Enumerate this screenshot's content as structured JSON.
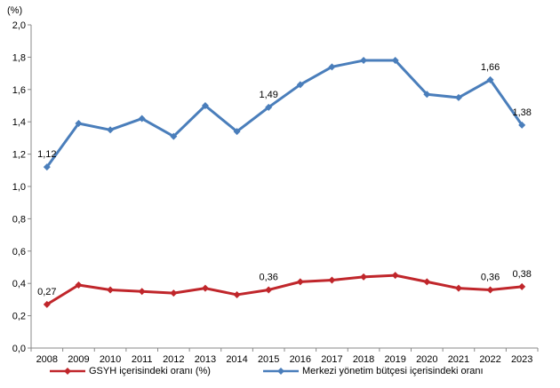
{
  "chart_data": {
    "type": "line",
    "unit_label": "(%)",
    "categories": [
      "2008",
      "2009",
      "2010",
      "2011",
      "2012",
      "2013",
      "2014",
      "2015",
      "2016",
      "2017",
      "2018",
      "2019",
      "2020",
      "2021",
      "2022",
      "2023"
    ],
    "ylim": [
      0,
      2.0
    ],
    "yticks": [
      "0,0",
      "0,2",
      "0,4",
      "0,6",
      "0,8",
      "1,0",
      "1,2",
      "1,4",
      "1,6",
      "1,8",
      "2,0"
    ],
    "grid": false,
    "legend_position": "bottom",
    "series": [
      {
        "name": "GSYH içerisindeki oranı (%)",
        "color": "#c0262b",
        "values": [
          0.27,
          0.39,
          0.36,
          0.35,
          0.34,
          0.37,
          0.33,
          0.36,
          0.41,
          0.42,
          0.44,
          0.45,
          0.41,
          0.37,
          0.36,
          0.38
        ],
        "labels": {
          "0": "0,27",
          "7": "0,36",
          "14": "0,36",
          "15": "0,38"
        }
      },
      {
        "name": "Merkezi yönetim bütçesi içerisindeki oranı",
        "color": "#4a7ebb",
        "values": [
          1.12,
          1.39,
          1.35,
          1.42,
          1.31,
          1.5,
          1.34,
          1.49,
          1.63,
          1.74,
          1.78,
          1.78,
          1.57,
          1.55,
          1.66,
          1.38
        ],
        "labels": {
          "0": "1,12",
          "7": "1,49",
          "14": "1,66",
          "15": "1,38"
        }
      }
    ]
  }
}
